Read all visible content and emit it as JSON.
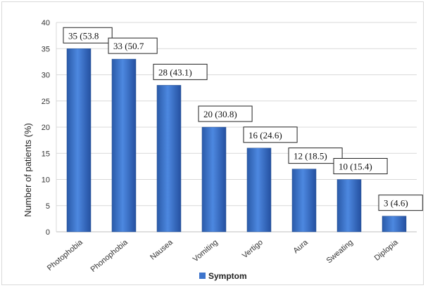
{
  "chart_data": {
    "type": "bar",
    "title": "",
    "xlabel": "",
    "ylabel": "Number of patients (%)",
    "ylim": [
      0,
      40
    ],
    "yticks": [
      0,
      5,
      10,
      15,
      20,
      25,
      30,
      35,
      40
    ],
    "grid": true,
    "legend": {
      "position": "bottom",
      "entries": [
        "Symptom"
      ]
    },
    "bar_color": "#3d74cc",
    "categories": [
      "Photophobia",
      "Phonophobia",
      "Nausea",
      "Vomiting",
      "Vertigo",
      "Aura",
      "Sweating",
      "Diplopia"
    ],
    "series": [
      {
        "name": "Symptom",
        "values": [
          35,
          33,
          28,
          20,
          16,
          12,
          10,
          3
        ]
      }
    ],
    "data_labels": [
      "35 (53.8",
      "33 (50.7",
      "28 (43.1)",
      "20 (30.8)",
      "16 (24.6)",
      "12 (18.5)",
      "10 (15.4)",
      "3 (4.6)"
    ]
  }
}
